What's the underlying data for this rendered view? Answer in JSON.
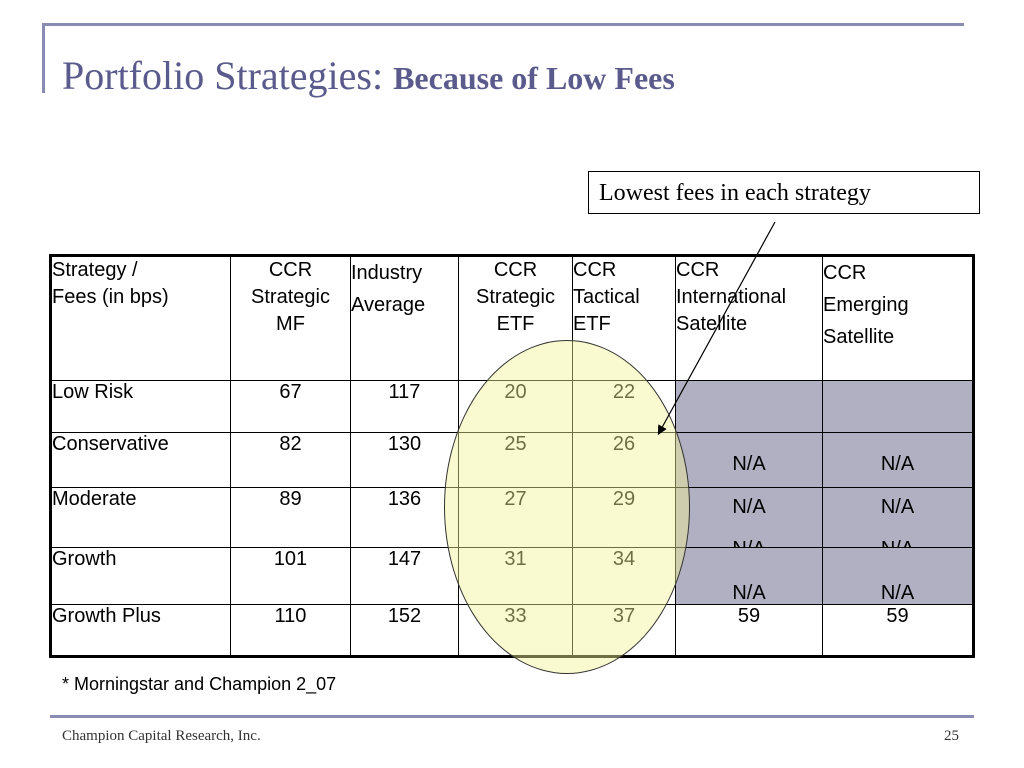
{
  "slide": {
    "title_main": "Portfolio Strategies:",
    "title_bold": "Because of Low Fees",
    "callout": "Lowest fees in each strategy",
    "footnote": "* Morningstar and Champion 2_07",
    "footer": "Champion Capital Research, Inc.",
    "page_number": "25"
  },
  "table": {
    "header": {
      "strategy_bold": "Strategy",
      "strategy_sep": " /",
      "fees_bold": "Fees (in bps)",
      "columns": [
        [
          "CCR",
          "Strategic",
          "MF"
        ],
        [
          "Industry",
          "Average"
        ],
        [
          "CCR",
          "Strategic",
          "ETF"
        ],
        [
          "CCR",
          "Tactical",
          "ETF"
        ],
        [
          "CCR",
          "International",
          "Satellite"
        ],
        [
          "CCR",
          "Emerging",
          "Satellite"
        ]
      ]
    },
    "rows": [
      {
        "label": "Low Risk",
        "values": [
          "67",
          "117",
          "20",
          "22"
        ]
      },
      {
        "label": "Conservative",
        "values": [
          "82",
          "130",
          "25",
          "26"
        ]
      },
      {
        "label": "Moderate",
        "values": [
          "89",
          "136",
          "27",
          "29"
        ]
      },
      {
        "label": "Growth",
        "values": [
          "101",
          "147",
          "31",
          "34"
        ]
      },
      {
        "label": "Growth Plus",
        "values": [
          "110",
          "152",
          "33",
          "37",
          "59",
          "59"
        ]
      }
    ],
    "na_label": "N/A",
    "shaded_color": "#b0b0c2",
    "highlight_color": "#f5f596"
  }
}
